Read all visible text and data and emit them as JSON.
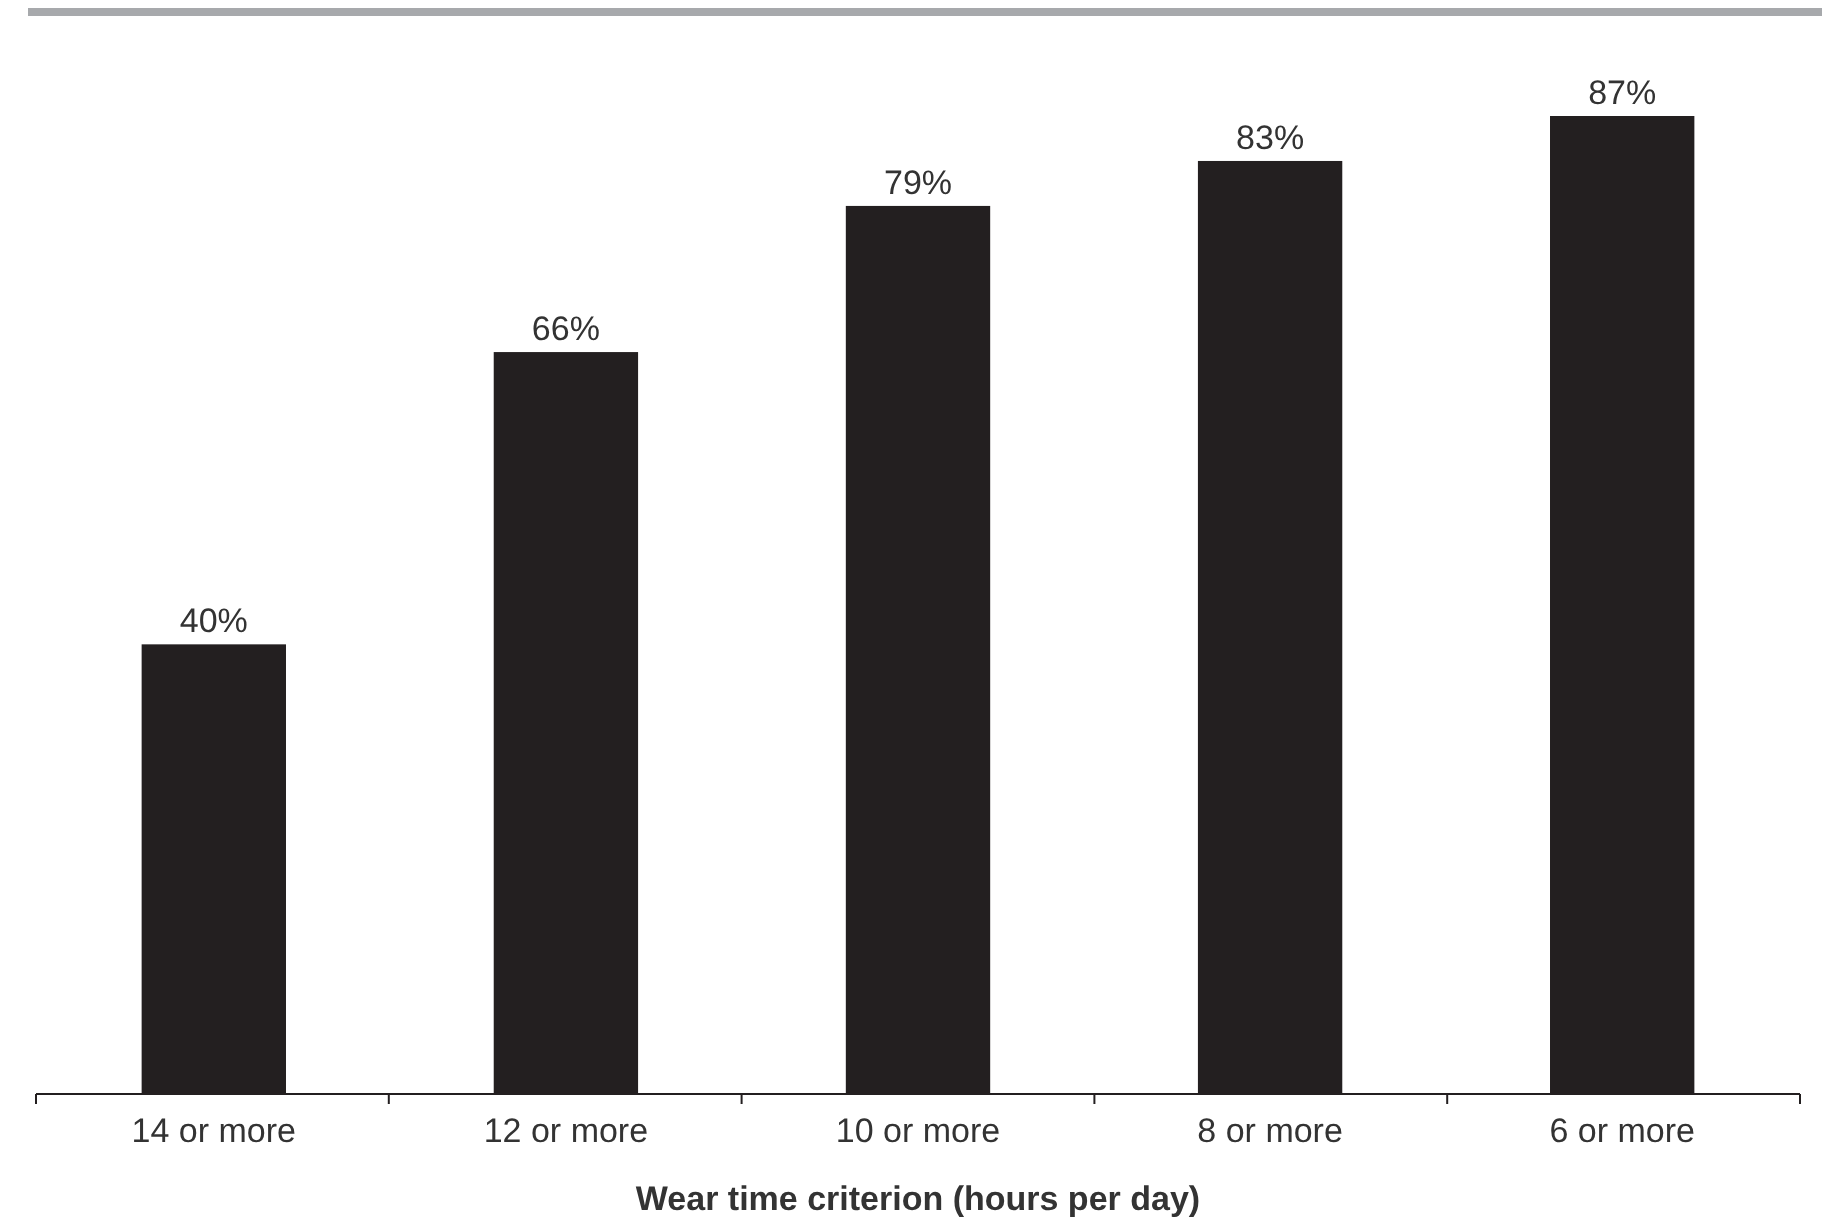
{
  "chart_data": {
    "type": "bar",
    "xlabel": "Wear time criterion (hours per day)",
    "categories": [
      "14 or more",
      "12 or more",
      "10 or more",
      "8 or more",
      "6 or more"
    ],
    "values": [
      40,
      66,
      79,
      83,
      87
    ],
    "color": "#231f20",
    "data_labels": true,
    "value_labels": [
      "40%",
      "66%",
      "79%",
      "83%",
      "87%"
    ]
  }
}
